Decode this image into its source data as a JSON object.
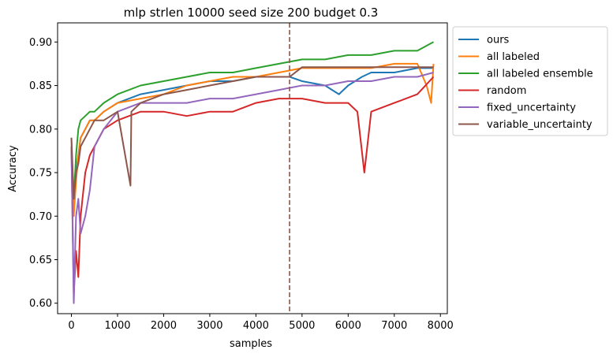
{
  "chart_data": {
    "type": "line",
    "title": "mlp strlen 10000 seed size 200 budget 0.3",
    "xlabel": "samples",
    "ylabel": "Accuracy",
    "xlim": [
      -300,
      8150
    ],
    "ylim": [
      0.588,
      0.922
    ],
    "xticks": [
      0,
      1000,
      2000,
      3000,
      4000,
      5000,
      6000,
      7000,
      8000
    ],
    "xtick_labels": [
      "0",
      "1000",
      "2000",
      "3000",
      "4000",
      "5000",
      "6000",
      "7000",
      "8000"
    ],
    "yticks": [
      0.6,
      0.65,
      0.7,
      0.75,
      0.8,
      0.85,
      0.9
    ],
    "ytick_labels": [
      "0.60",
      "0.65",
      "0.70",
      "0.75",
      "0.80",
      "0.85",
      "0.90"
    ],
    "grid": false,
    "legend_placement": "outside upper right",
    "vline": {
      "x": 4730,
      "color": "#8c564b",
      "style": "dashed"
    },
    "series": [
      {
        "name": "ours",
        "color": "#1f77b4",
        "x": [
          0,
          50,
          100,
          150,
          200,
          300,
          400,
          500,
          700,
          1000,
          1500,
          2000,
          2500,
          3000,
          3500,
          4000,
          4500,
          4730,
          5000,
          5500,
          5800,
          6000,
          6300,
          6500,
          7000,
          7500,
          7850
        ],
        "y": [
          0.78,
          0.71,
          0.75,
          0.77,
          0.79,
          0.8,
          0.81,
          0.81,
          0.82,
          0.83,
          0.84,
          0.845,
          0.85,
          0.855,
          0.855,
          0.86,
          0.86,
          0.86,
          0.855,
          0.85,
          0.84,
          0.85,
          0.86,
          0.865,
          0.865,
          0.87,
          0.87
        ]
      },
      {
        "name": "all labeled",
        "color": "#ff7f0e",
        "x": [
          0,
          50,
          100,
          150,
          200,
          300,
          400,
          500,
          700,
          1000,
          1500,
          2000,
          2500,
          3000,
          3500,
          4000,
          4500,
          5000,
          5500,
          6000,
          6500,
          7000,
          7500,
          7700,
          7800,
          7850
        ],
        "y": [
          0.79,
          0.7,
          0.74,
          0.77,
          0.79,
          0.8,
          0.81,
          0.81,
          0.82,
          0.83,
          0.835,
          0.84,
          0.85,
          0.855,
          0.86,
          0.86,
          0.865,
          0.87,
          0.87,
          0.87,
          0.87,
          0.875,
          0.875,
          0.85,
          0.83,
          0.875
        ]
      },
      {
        "name": "all labeled ensemble",
        "color": "#2ca02c",
        "x": [
          0,
          50,
          100,
          150,
          200,
          300,
          400,
          500,
          700,
          1000,
          1500,
          2000,
          2500,
          3000,
          3500,
          4000,
          4500,
          5000,
          5500,
          6000,
          6500,
          7000,
          7500,
          7850
        ],
        "y": [
          0.78,
          0.72,
          0.77,
          0.8,
          0.81,
          0.815,
          0.82,
          0.82,
          0.83,
          0.84,
          0.85,
          0.855,
          0.86,
          0.865,
          0.865,
          0.87,
          0.875,
          0.88,
          0.88,
          0.885,
          0.885,
          0.89,
          0.89,
          0.9
        ]
      },
      {
        "name": "random",
        "color": "#d62728",
        "x": [
          0,
          50,
          100,
          150,
          200,
          300,
          400,
          500,
          700,
          1000,
          1500,
          2000,
          2500,
          3000,
          3500,
          4000,
          4500,
          5000,
          5500,
          6000,
          6200,
          6350,
          6500,
          7000,
          7500,
          7850
        ],
        "y": [
          0.78,
          0.61,
          0.66,
          0.63,
          0.7,
          0.75,
          0.77,
          0.78,
          0.8,
          0.81,
          0.82,
          0.82,
          0.815,
          0.82,
          0.82,
          0.83,
          0.835,
          0.835,
          0.83,
          0.83,
          0.82,
          0.75,
          0.82,
          0.83,
          0.84,
          0.86
        ]
      },
      {
        "name": "fixed_uncertainty",
        "color": "#9467bd",
        "x": [
          0,
          50,
          100,
          150,
          200,
          300,
          400,
          500,
          700,
          1000,
          1500,
          2000,
          2500,
          3000,
          3500,
          4000,
          4500,
          5000,
          5500,
          6000,
          6500,
          7000,
          7500,
          7850
        ],
        "y": [
          0.78,
          0.6,
          0.7,
          0.72,
          0.68,
          0.7,
          0.73,
          0.78,
          0.8,
          0.82,
          0.83,
          0.83,
          0.83,
          0.835,
          0.835,
          0.84,
          0.845,
          0.85,
          0.85,
          0.855,
          0.855,
          0.86,
          0.86,
          0.865
        ]
      },
      {
        "name": "variable_uncertainty",
        "color": "#8c564b",
        "x": [
          0,
          50,
          100,
          150,
          200,
          300,
          400,
          500,
          700,
          1000,
          1280,
          1300,
          1500,
          2000,
          2500,
          3000,
          3500,
          4000,
          4500,
          4730,
          5000,
          6000,
          7000,
          7850
        ],
        "y": [
          0.79,
          0.72,
          0.75,
          0.76,
          0.78,
          0.79,
          0.8,
          0.81,
          0.81,
          0.82,
          0.735,
          0.82,
          0.83,
          0.84,
          0.845,
          0.85,
          0.855,
          0.86,
          0.86,
          0.86,
          0.871,
          0.871,
          0.871,
          0.871
        ]
      }
    ]
  }
}
